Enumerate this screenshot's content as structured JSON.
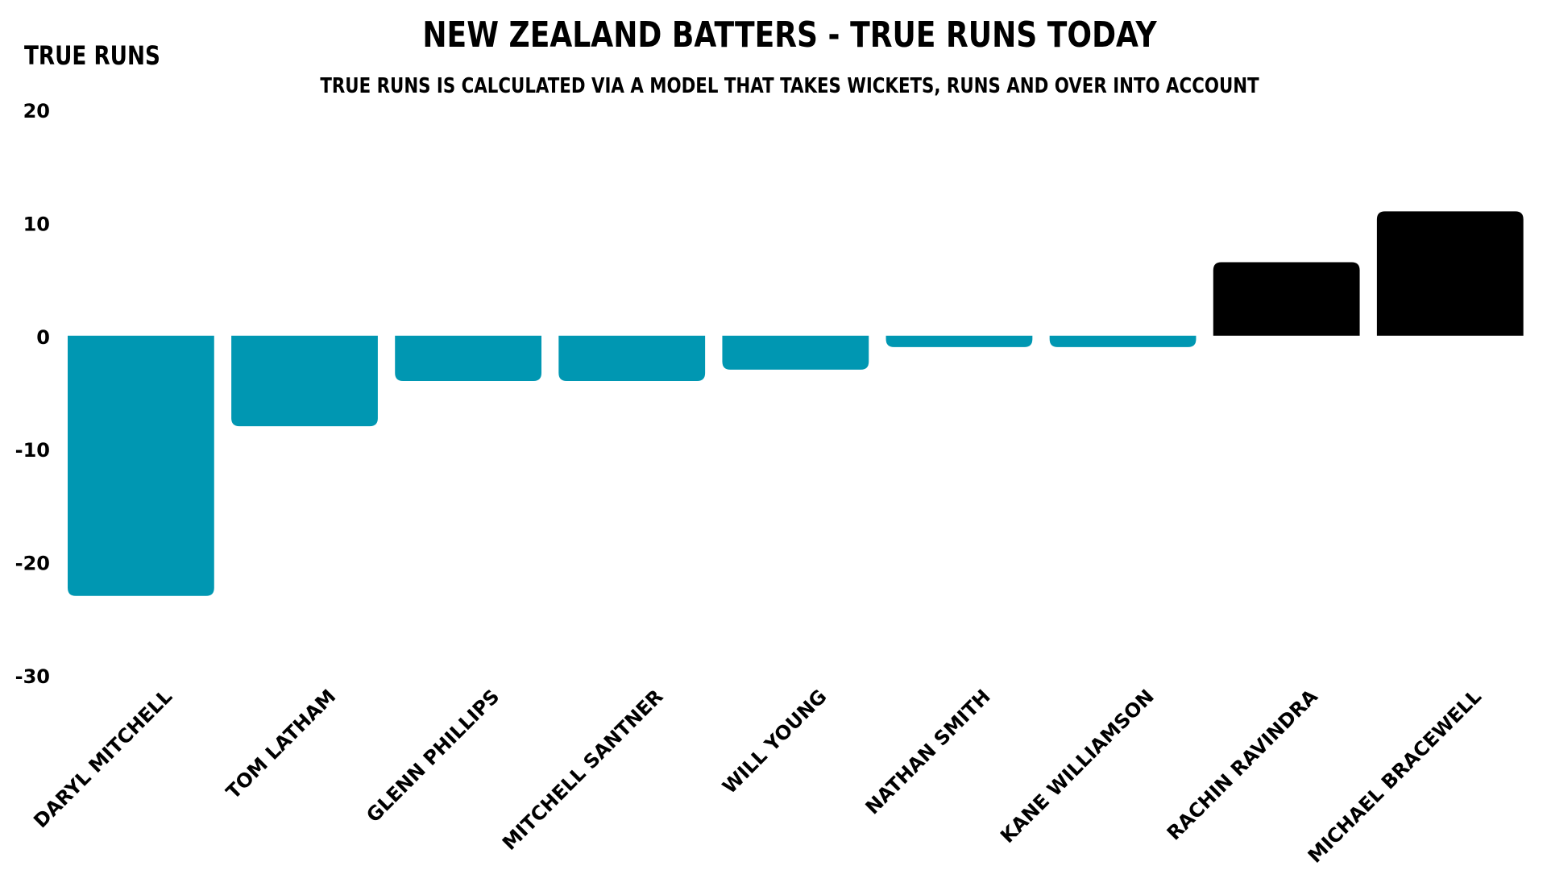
{
  "chart_data": {
    "type": "bar",
    "title": "NEW ZEALAND BATTERS - TRUE RUNS TODAY",
    "subtitle": "TRUE RUNS IS CALCULATED VIA A MODEL THAT TAKES WICKETS, RUNS AND OVER INTO ACCOUNT",
    "xlabel": "",
    "ylabel": "TRUE RUNS",
    "categories": [
      "DARYL MITCHELL",
      "TOM LATHAM",
      "GLENN PHILLIPS",
      "MITCHELL SANTNER",
      "WILL YOUNG",
      "NATHAN SMITH",
      "KANE WILLIAMSON",
      "RACHIN RAVINDRA",
      "MICHAEL BRACEWELL"
    ],
    "values": [
      -23,
      -8,
      -4,
      -4,
      -3,
      -1,
      -1,
      6.5,
      11
    ],
    "ylim": [
      -30,
      20
    ],
    "yticks": [
      20,
      10,
      0,
      -10,
      -20,
      -30
    ],
    "ytick_labels": [
      "20",
      "10",
      "0",
      "-10",
      "-20",
      "-30"
    ],
    "grid": false,
    "legend": "none",
    "colors": {
      "negative": "#0097B2",
      "positive": "#000000"
    }
  }
}
